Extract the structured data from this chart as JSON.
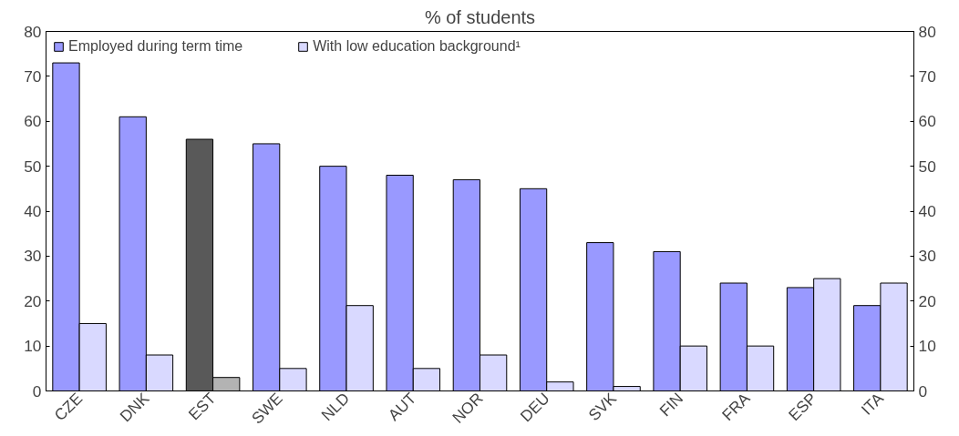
{
  "chart_data": {
    "type": "bar",
    "title": "% of students",
    "categories": [
      "CZE",
      "DNK",
      "EST",
      "SWE",
      "NLD",
      "AUT",
      "NOR",
      "DEU",
      "SVK",
      "FIN",
      "FRA",
      "ESP",
      "ITA"
    ],
    "series": [
      {
        "name": "Employed during term time",
        "color": "#9999ff",
        "colors": [
          null,
          null,
          "#595959",
          null,
          null,
          null,
          null,
          null,
          null,
          null,
          null,
          null,
          null
        ],
        "values": [
          73,
          61,
          56,
          55,
          50,
          48,
          47,
          45,
          33,
          31,
          24,
          23,
          19
        ]
      },
      {
        "name": "With low education background¹",
        "color": "#d9d9ff",
        "colors": [
          null,
          null,
          "#b3b3b3",
          null,
          null,
          null,
          null,
          null,
          null,
          null,
          null,
          null,
          null
        ],
        "values": [
          15,
          8,
          3,
          5,
          19,
          5,
          8,
          2,
          1,
          10,
          10,
          25,
          24
        ]
      }
    ],
    "ylim": [
      0,
      80
    ],
    "yticks": [
      0,
      10,
      20,
      30,
      40,
      50,
      60,
      70,
      80
    ],
    "y2lim": [
      0,
      80
    ],
    "y2ticks": [
      0,
      10,
      20,
      30,
      40,
      50,
      60,
      70,
      80
    ],
    "grid": false,
    "legend": "top left"
  }
}
